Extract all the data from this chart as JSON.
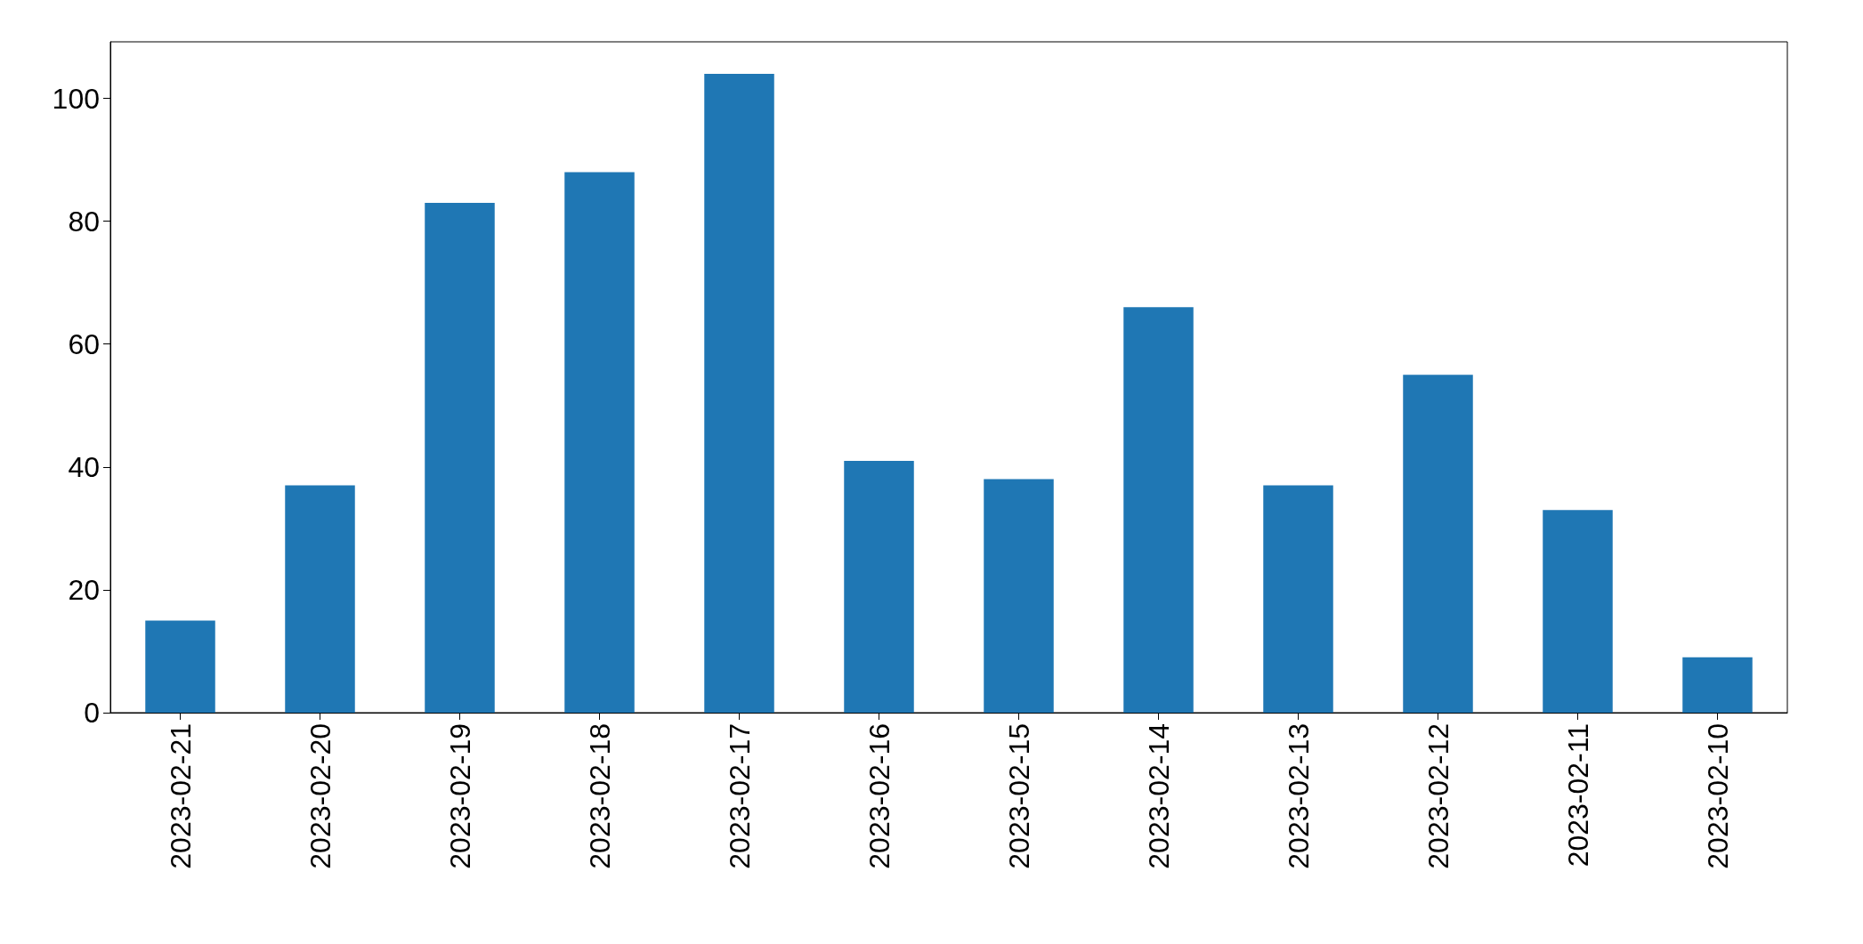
{
  "chart_data": {
    "type": "bar",
    "categories": [
      "2023-02-21",
      "2023-02-20",
      "2023-02-19",
      "2023-02-18",
      "2023-02-17",
      "2023-02-16",
      "2023-02-15",
      "2023-02-14",
      "2023-02-13",
      "2023-02-12",
      "2023-02-11",
      "2023-02-10"
    ],
    "values": [
      15,
      37,
      83,
      88,
      104,
      41,
      38,
      66,
      37,
      55,
      33,
      9
    ],
    "color": "#1f77b4",
    "ylim": [
      0,
      109.2
    ],
    "yticks": [
      0,
      20,
      40,
      60,
      80,
      100
    ],
    "grid": false
  }
}
